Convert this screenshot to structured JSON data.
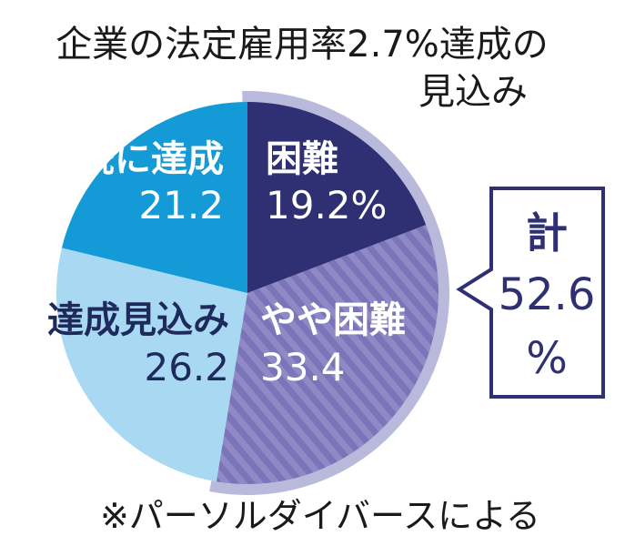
{
  "chart_data": {
    "type": "pie",
    "title_lines": [
      "企業の法定雇用率2.7%達成の",
      "見込み"
    ],
    "slices": [
      {
        "name": "困難",
        "value": 19.2,
        "label": "19.2%",
        "color": "#2e3073",
        "text_color": "#ffffff",
        "hatched": false
      },
      {
        "name": "やや困難",
        "value": 33.4,
        "label": "33.4",
        "color": "#7b74b8",
        "text_color": "#ffffff",
        "hatched": true
      },
      {
        "name": "達成見込み",
        "value": 26.2,
        "label": "26.2",
        "color": "#a9d9f2",
        "text_color": "#1f2a5c",
        "hatched": false
      },
      {
        "name": "既に達成",
        "value": 21.2,
        "label": "21.2",
        "color": "#149ad6",
        "text_color": "#ffffff",
        "hatched": false
      }
    ],
    "total_callout": {
      "lines": [
        "計",
        "52.6",
        "%"
      ],
      "covers": [
        "困難",
        "やや困難"
      ]
    },
    "source_note": "※パーソルダイバースによる",
    "colors": {
      "title": "#1a1a1a",
      "outer_band": "#b9b9dc",
      "callout_border": "#2e3073",
      "callout_text": "#2e3073"
    }
  }
}
